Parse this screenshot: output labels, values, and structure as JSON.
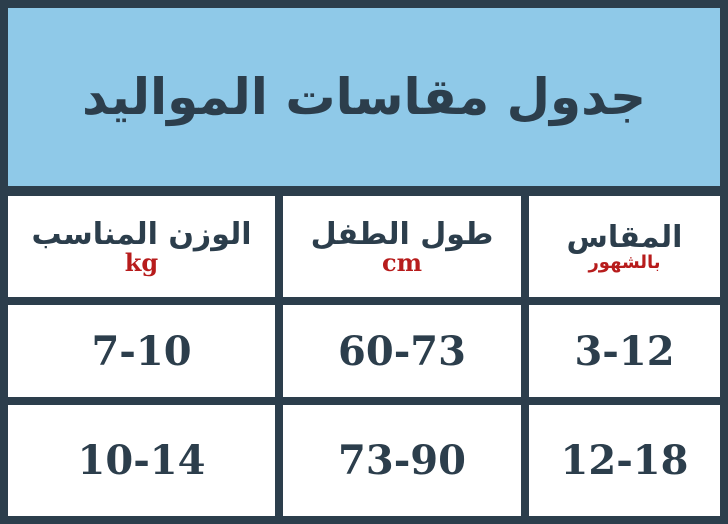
{
  "title": "جدول مقاسات المواليد",
  "headers": [
    {
      "label": "المقاس",
      "sub": "بالشهور"
    },
    {
      "label": "طول الطفل",
      "sub": "cm"
    },
    {
      "label": "الوزن المناسب",
      "sub": "kg"
    }
  ],
  "rows": [
    [
      "3-12",
      "60-73",
      "7-10"
    ],
    [
      "12-18",
      "73-90",
      "10-14"
    ]
  ],
  "colors": {
    "border": "#2c3e4c",
    "header_bg": "#8fc9e8",
    "unit_text": "#b71c1c"
  }
}
